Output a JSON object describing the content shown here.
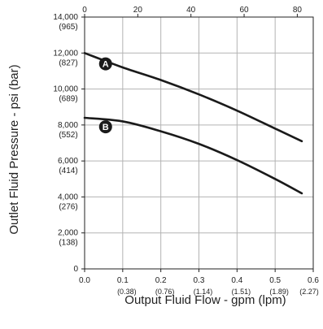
{
  "chart_data": {
    "type": "line",
    "xlabel": "Output Fluid Flow - gpm (lpm)",
    "ylabel": "Outlet Fluid Pressure - psi (bar)",
    "xlim": [
      0.0,
      0.6
    ],
    "ylim": [
      0,
      14000
    ],
    "x2lim": [
      0,
      86
    ],
    "grid": true,
    "x_ticks": [
      {
        "value": 0.0,
        "label": "0.0",
        "sub": ""
      },
      {
        "value": 0.1,
        "label": "0.1",
        "sub": "(0.38)"
      },
      {
        "value": 0.2,
        "label": "0.2",
        "sub": "(0.76)"
      },
      {
        "value": 0.3,
        "label": "0.3",
        "sub": "(1.14)"
      },
      {
        "value": 0.4,
        "label": "0.4",
        "sub": "(1.51)"
      },
      {
        "value": 0.5,
        "label": "0.5",
        "sub": "(1.89)"
      },
      {
        "value": 0.6,
        "label": "0.6",
        "sub": "(2.27)"
      }
    ],
    "x2_ticks": [
      {
        "value": 0,
        "label": "0"
      },
      {
        "value": 20,
        "label": "20"
      },
      {
        "value": 40,
        "label": "40"
      },
      {
        "value": 60,
        "label": "60"
      },
      {
        "value": 80,
        "label": "80"
      }
    ],
    "y_ticks": [
      {
        "value": 0,
        "label": "0",
        "sub": ""
      },
      {
        "value": 2000,
        "label": "2,000",
        "sub": "(138)"
      },
      {
        "value": 4000,
        "label": "4,000",
        "sub": "(276)"
      },
      {
        "value": 6000,
        "label": "6,000",
        "sub": "(414)"
      },
      {
        "value": 8000,
        "label": "8,000",
        "sub": "(552)"
      },
      {
        "value": 10000,
        "label": "10,000",
        "sub": "(689)"
      },
      {
        "value": 12000,
        "label": "12,000",
        "sub": "(827)"
      },
      {
        "value": 14000,
        "label": "14,000",
        "sub": "(965)"
      }
    ],
    "series": [
      {
        "marker": "A",
        "marker_at": {
          "x": 0.055,
          "y": 11400
        },
        "points": [
          [
            0.0,
            12000
          ],
          [
            0.1,
            11200
          ],
          [
            0.2,
            10500
          ],
          [
            0.3,
            9700
          ],
          [
            0.4,
            8800
          ],
          [
            0.5,
            7800
          ],
          [
            0.57,
            7100
          ]
        ]
      },
      {
        "marker": "B",
        "marker_at": {
          "x": 0.055,
          "y": 7900
        },
        "points": [
          [
            0.0,
            8400
          ],
          [
            0.1,
            8200
          ],
          [
            0.2,
            7650
          ],
          [
            0.3,
            6950
          ],
          [
            0.4,
            6050
          ],
          [
            0.5,
            5000
          ],
          [
            0.57,
            4200
          ]
        ]
      }
    ]
  }
}
